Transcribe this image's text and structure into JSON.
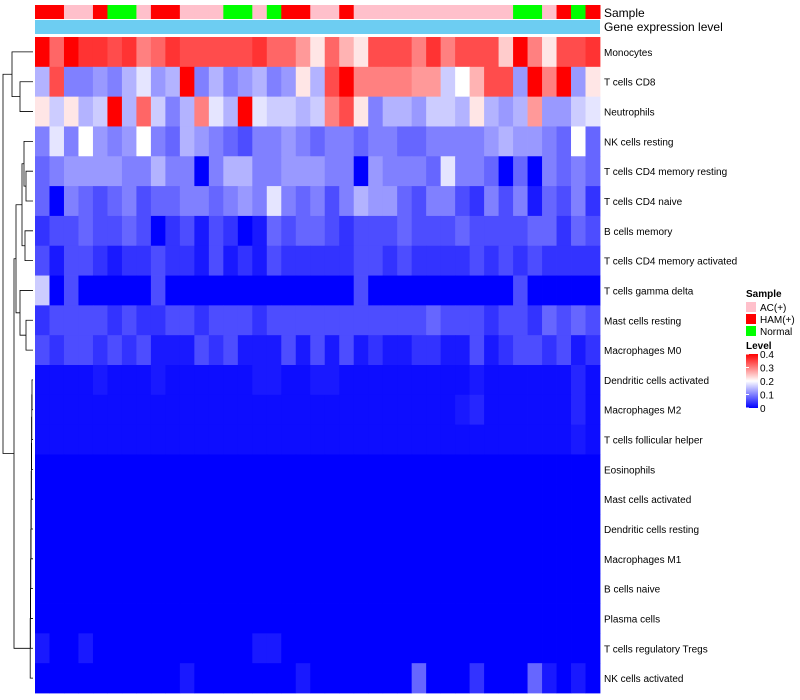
{
  "chart_data": {
    "type": "heatmap",
    "annotation_labels": {
      "sample": "Sample",
      "expression": "Gene expression level"
    },
    "samples": [
      "HAM(+)",
      "HAM(+)",
      "AC(+)",
      "AC(+)",
      "HAM(+)",
      "Normal",
      "Normal",
      "AC(+)",
      "HAM(+)",
      "HAM(+)",
      "AC(+)",
      "AC(+)",
      "AC(+)",
      "Normal",
      "Normal",
      "AC(+)",
      "Normal",
      "HAM(+)",
      "HAM(+)",
      "AC(+)",
      "AC(+)",
      "HAM(+)",
      "AC(+)",
      "AC(+)",
      "AC(+)",
      "AC(+)",
      "AC(+)",
      "AC(+)",
      "AC(+)",
      "AC(+)",
      "AC(+)",
      "AC(+)",
      "AC(+)",
      "Normal",
      "Normal",
      "AC(+)",
      "HAM(+)",
      "Normal",
      "HAM(+)"
    ],
    "rows": [
      "Monocytes",
      "T cells CD8",
      "Neutrophils",
      "NK cells resting",
      "T cells CD4 memory resting",
      "T cells CD4 naive",
      "B cells memory",
      "T cells CD4 memory activated",
      "T cells gamma delta",
      "Mast cells resting",
      "Macrophages M0",
      "Dendritic cells activated",
      "Macrophages M2",
      "T cells follicular helper",
      "Eosinophils",
      "Mast cells activated",
      "Dendritic cells resting",
      "Macrophages M1",
      "B cells naive",
      "Plasma cells",
      "T cells regulatory  Tregs",
      "NK cells activated"
    ],
    "values": [
      [
        0.4,
        0.32,
        0.4,
        0.36,
        0.36,
        0.34,
        0.36,
        0.3,
        0.32,
        0.36,
        0.34,
        0.34,
        0.34,
        0.34,
        0.34,
        0.36,
        0.32,
        0.32,
        0.28,
        0.22,
        0.32,
        0.26,
        0.22,
        0.34,
        0.34,
        0.34,
        0.3,
        0.36,
        0.3,
        0.34,
        0.34,
        0.34,
        0.24,
        0.4,
        0.3,
        0.22,
        0.34,
        0.34,
        0.36
      ],
      [
        0.14,
        0.34,
        0.1,
        0.1,
        0.12,
        0.1,
        0.14,
        0.18,
        0.12,
        0.14,
        0.4,
        0.1,
        0.14,
        0.1,
        0.12,
        0.14,
        0.1,
        0.12,
        0.22,
        0.14,
        0.34,
        0.4,
        0.3,
        0.3,
        0.3,
        0.3,
        0.28,
        0.28,
        0.16,
        0.2,
        0.26,
        0.34,
        0.34,
        0.12,
        0.4,
        0.3,
        0.4,
        0.12,
        0.22
      ],
      [
        0.22,
        0.16,
        0.22,
        0.14,
        0.16,
        0.4,
        0.14,
        0.32,
        0.16,
        0.1,
        0.14,
        0.3,
        0.18,
        0.14,
        0.4,
        0.18,
        0.16,
        0.16,
        0.14,
        0.16,
        0.3,
        0.34,
        0.22,
        0.1,
        0.14,
        0.14,
        0.12,
        0.16,
        0.16,
        0.14,
        0.22,
        0.14,
        0.12,
        0.14,
        0.28,
        0.12,
        0.12,
        0.16,
        0.18
      ],
      [
        0.1,
        0.18,
        0.1,
        0.2,
        0.12,
        0.1,
        0.12,
        0.2,
        0.1,
        0.08,
        0.14,
        0.12,
        0.1,
        0.08,
        0.06,
        0.1,
        0.1,
        0.12,
        0.1,
        0.08,
        0.1,
        0.1,
        0.08,
        0.1,
        0.1,
        0.08,
        0.08,
        0.1,
        0.1,
        0.1,
        0.1,
        0.12,
        0.14,
        0.12,
        0.12,
        0.1,
        0.08,
        0.2,
        0.08
      ],
      [
        0.08,
        0.1,
        0.12,
        0.12,
        0.12,
        0.12,
        0.1,
        0.1,
        0.14,
        0.1,
        0.1,
        0.0,
        0.1,
        0.14,
        0.14,
        0.1,
        0.1,
        0.12,
        0.12,
        0.12,
        0.1,
        0.1,
        0.0,
        0.12,
        0.1,
        0.1,
        0.1,
        0.08,
        0.18,
        0.1,
        0.1,
        0.08,
        0.0,
        0.08,
        0.0,
        0.1,
        0.08,
        0.1,
        0.08
      ],
      [
        0.08,
        0.0,
        0.1,
        0.08,
        0.06,
        0.08,
        0.1,
        0.06,
        0.08,
        0.08,
        0.1,
        0.1,
        0.08,
        0.1,
        0.12,
        0.1,
        0.18,
        0.1,
        0.08,
        0.1,
        0.06,
        0.1,
        0.14,
        0.12,
        0.12,
        0.08,
        0.06,
        0.1,
        0.1,
        0.06,
        0.04,
        0.1,
        0.06,
        0.1,
        0.02,
        0.08,
        0.06,
        0.1,
        0.04
      ],
      [
        0.04,
        0.06,
        0.06,
        0.08,
        0.06,
        0.06,
        0.08,
        0.06,
        0.0,
        0.04,
        0.06,
        0.02,
        0.06,
        0.04,
        0.0,
        0.02,
        0.08,
        0.06,
        0.08,
        0.08,
        0.06,
        0.04,
        0.06,
        0.06,
        0.06,
        0.08,
        0.06,
        0.06,
        0.06,
        0.08,
        0.06,
        0.06,
        0.06,
        0.06,
        0.08,
        0.08,
        0.04,
        0.08,
        0.06
      ],
      [
        0.06,
        0.02,
        0.06,
        0.06,
        0.04,
        0.02,
        0.04,
        0.04,
        0.06,
        0.04,
        0.04,
        0.02,
        0.06,
        0.02,
        0.04,
        0.02,
        0.06,
        0.04,
        0.04,
        0.04,
        0.04,
        0.04,
        0.06,
        0.06,
        0.04,
        0.06,
        0.04,
        0.04,
        0.04,
        0.04,
        0.06,
        0.04,
        0.06,
        0.04,
        0.06,
        0.04,
        0.04,
        0.04,
        0.04
      ],
      [
        0.16,
        0.0,
        0.06,
        0.0,
        0.0,
        0.0,
        0.0,
        0.0,
        0.06,
        0.0,
        0.0,
        0.0,
        0.0,
        0.0,
        0.0,
        0.0,
        0.0,
        0.0,
        0.0,
        0.0,
        0.0,
        0.0,
        0.06,
        0.0,
        0.0,
        0.0,
        0.0,
        0.0,
        0.0,
        0.0,
        0.0,
        0.0,
        0.0,
        0.06,
        0.0,
        0.0,
        0.0,
        0.0,
        0.0
      ],
      [
        0.04,
        0.06,
        0.06,
        0.06,
        0.06,
        0.04,
        0.06,
        0.04,
        0.04,
        0.06,
        0.06,
        0.04,
        0.06,
        0.06,
        0.06,
        0.04,
        0.06,
        0.06,
        0.06,
        0.06,
        0.06,
        0.06,
        0.06,
        0.06,
        0.06,
        0.06,
        0.06,
        0.08,
        0.06,
        0.06,
        0.06,
        0.04,
        0.06,
        0.06,
        0.04,
        0.08,
        0.06,
        0.08,
        0.06
      ],
      [
        0.06,
        0.04,
        0.06,
        0.06,
        0.04,
        0.06,
        0.04,
        0.06,
        0.02,
        0.02,
        0.02,
        0.06,
        0.04,
        0.06,
        0.02,
        0.02,
        0.02,
        0.06,
        0.02,
        0.06,
        0.02,
        0.06,
        0.02,
        0.04,
        0.02,
        0.02,
        0.04,
        0.04,
        0.02,
        0.02,
        0.06,
        0.02,
        0.04,
        0.06,
        0.06,
        0.04,
        0.06,
        0.02,
        0.04
      ],
      [
        0.01,
        0.01,
        0.01,
        0.01,
        0.02,
        0.01,
        0.01,
        0.01,
        0.02,
        0.01,
        0.01,
        0.01,
        0.01,
        0.01,
        0.01,
        0.02,
        0.02,
        0.01,
        0.01,
        0.02,
        0.02,
        0.01,
        0.01,
        0.01,
        0.01,
        0.01,
        0.01,
        0.01,
        0.01,
        0.01,
        0.02,
        0.01,
        0.01,
        0.01,
        0.01,
        0.01,
        0.01,
        0.03,
        0.01
      ],
      [
        0.01,
        0.01,
        0.01,
        0.01,
        0.01,
        0.01,
        0.01,
        0.01,
        0.01,
        0.01,
        0.01,
        0.01,
        0.01,
        0.01,
        0.01,
        0.01,
        0.01,
        0.01,
        0.01,
        0.01,
        0.01,
        0.01,
        0.01,
        0.01,
        0.01,
        0.01,
        0.01,
        0.01,
        0.01,
        0.02,
        0.03,
        0.01,
        0.01,
        0.01,
        0.01,
        0.01,
        0.01,
        0.03,
        0.01
      ],
      [
        0.01,
        0.01,
        0.01,
        0.01,
        0.01,
        0.01,
        0.01,
        0.01,
        0.01,
        0.01,
        0.01,
        0.01,
        0.01,
        0.01,
        0.01,
        0.01,
        0.01,
        0.01,
        0.01,
        0.01,
        0.01,
        0.01,
        0.01,
        0.01,
        0.01,
        0.01,
        0.01,
        0.01,
        0.01,
        0.01,
        0.01,
        0.01,
        0.01,
        0.01,
        0.01,
        0.01,
        0.01,
        0.02,
        0.01
      ],
      [
        0.0,
        0.0,
        0.0,
        0.0,
        0.0,
        0.0,
        0.0,
        0.0,
        0.0,
        0.0,
        0.0,
        0.0,
        0.0,
        0.0,
        0.0,
        0.0,
        0.0,
        0.0,
        0.0,
        0.0,
        0.0,
        0.0,
        0.0,
        0.0,
        0.0,
        0.0,
        0.0,
        0.0,
        0.0,
        0.0,
        0.0,
        0.0,
        0.0,
        0.0,
        0.0,
        0.0,
        0.0,
        0.0,
        0.0
      ],
      [
        0.0,
        0.0,
        0.0,
        0.0,
        0.0,
        0.0,
        0.0,
        0.0,
        0.0,
        0.0,
        0.0,
        0.0,
        0.0,
        0.0,
        0.0,
        0.0,
        0.0,
        0.0,
        0.0,
        0.0,
        0.0,
        0.0,
        0.0,
        0.0,
        0.0,
        0.0,
        0.0,
        0.0,
        0.0,
        0.0,
        0.0,
        0.0,
        0.0,
        0.0,
        0.0,
        0.0,
        0.0,
        0.0,
        0.0
      ],
      [
        0.0,
        0.0,
        0.0,
        0.0,
        0.0,
        0.0,
        0.0,
        0.0,
        0.0,
        0.0,
        0.0,
        0.0,
        0.0,
        0.0,
        0.0,
        0.0,
        0.0,
        0.0,
        0.0,
        0.0,
        0.0,
        0.0,
        0.0,
        0.0,
        0.0,
        0.0,
        0.0,
        0.0,
        0.0,
        0.0,
        0.0,
        0.0,
        0.0,
        0.0,
        0.0,
        0.0,
        0.0,
        0.0,
        0.0
      ],
      [
        0.0,
        0.0,
        0.0,
        0.0,
        0.0,
        0.0,
        0.0,
        0.0,
        0.0,
        0.0,
        0.0,
        0.0,
        0.0,
        0.0,
        0.0,
        0.0,
        0.0,
        0.0,
        0.0,
        0.0,
        0.0,
        0.0,
        0.0,
        0.0,
        0.0,
        0.0,
        0.0,
        0.0,
        0.0,
        0.0,
        0.0,
        0.0,
        0.0,
        0.0,
        0.0,
        0.0,
        0.0,
        0.0,
        0.0
      ],
      [
        0.0,
        0.0,
        0.0,
        0.0,
        0.0,
        0.0,
        0.0,
        0.0,
        0.0,
        0.0,
        0.0,
        0.0,
        0.0,
        0.0,
        0.0,
        0.0,
        0.0,
        0.0,
        0.0,
        0.0,
        0.0,
        0.0,
        0.0,
        0.0,
        0.0,
        0.0,
        0.0,
        0.0,
        0.0,
        0.0,
        0.0,
        0.0,
        0.0,
        0.0,
        0.0,
        0.0,
        0.0,
        0.0,
        0.0
      ],
      [
        0.0,
        0.0,
        0.0,
        0.0,
        0.0,
        0.0,
        0.0,
        0.0,
        0.0,
        0.0,
        0.0,
        0.0,
        0.0,
        0.0,
        0.0,
        0.0,
        0.0,
        0.0,
        0.0,
        0.0,
        0.0,
        0.0,
        0.0,
        0.0,
        0.0,
        0.0,
        0.0,
        0.0,
        0.0,
        0.0,
        0.0,
        0.0,
        0.0,
        0.0,
        0.0,
        0.0,
        0.0,
        0.0,
        0.0
      ],
      [
        0.02,
        0.0,
        0.0,
        0.02,
        0.0,
        0.0,
        0.0,
        0.0,
        0.0,
        0.0,
        0.0,
        0.0,
        0.0,
        0.0,
        0.0,
        0.02,
        0.02,
        0.0,
        0.0,
        0.0,
        0.0,
        0.0,
        0.0,
        0.0,
        0.0,
        0.0,
        0.0,
        0.0,
        0.0,
        0.0,
        0.0,
        0.0,
        0.0,
        0.0,
        0.0,
        0.0,
        0.0,
        0.0,
        0.0
      ],
      [
        0.0,
        0.0,
        0.0,
        0.0,
        0.0,
        0.0,
        0.0,
        0.0,
        0.0,
        0.0,
        0.02,
        0.0,
        0.0,
        0.0,
        0.0,
        0.0,
        0.0,
        0.0,
        0.02,
        0.0,
        0.0,
        0.0,
        0.0,
        0.0,
        0.0,
        0.0,
        0.08,
        0.0,
        0.0,
        0.0,
        0.04,
        0.0,
        0.0,
        0.0,
        0.08,
        0.02,
        0.0,
        0.02,
        0.0
      ]
    ],
    "sample_legend": {
      "title": "Sample",
      "entries": [
        {
          "label": "AC(+)",
          "color": "#FFC0CB"
        },
        {
          "label": "HAM(+)",
          "color": "#FF0000"
        },
        {
          "label": "Normal",
          "color": "#00FF00"
        }
      ]
    },
    "level_legend": {
      "title": "Level",
      "ticks": [
        "0.4",
        "0.3",
        "0.2",
        "0.1",
        "0"
      ]
    },
    "color_scale": {
      "min": 0,
      "mid": 0.2,
      "max": 0.4,
      "low": "#0000FF",
      "midColor": "#FFFFFF",
      "high": "#FF0000"
    },
    "expression_bar_color": "#6DCDF2",
    "legend_placement": "right"
  }
}
